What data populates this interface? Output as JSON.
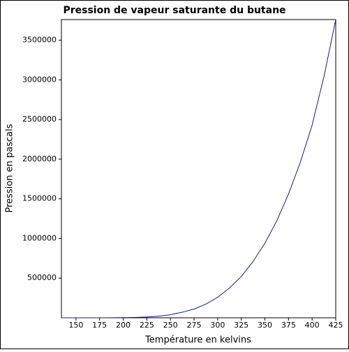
{
  "chart_data": {
    "type": "line",
    "title": "Pression de vapeur saturante du butane",
    "x_label": "Température en kelvins",
    "y_label": "Pression en pascals",
    "x": [
      134.6,
      150,
      162.5,
      175,
      187.5,
      200,
      212.5,
      225,
      237.5,
      250,
      262.5,
      275,
      287.5,
      300,
      312.5,
      325,
      337.5,
      350,
      362.5,
      375,
      387.5,
      400,
      412.5,
      425
    ],
    "series": [
      {
        "color": "#1a1a8c",
        "values": [
          1,
          8,
          45,
          190,
          700,
          1900,
          4800,
          10000,
          20000,
          39000,
          70000,
          110000,
          172000,
          258000,
          375000,
          520000,
          710000,
          940000,
          1220000,
          1560000,
          1960000,
          2430000,
          3040000,
          3760000
        ]
      }
    ],
    "xlim": [
      134.6,
      425
    ],
    "ylim": [
      0,
      3760000
    ],
    "xticks": [
      150,
      175,
      200,
      225,
      250,
      275,
      300,
      325,
      350,
      375,
      400,
      425
    ],
    "yticks": [
      500000,
      1000000,
      1500000,
      2000000,
      2500000,
      3000000,
      3500000
    ],
    "grid": false
  }
}
